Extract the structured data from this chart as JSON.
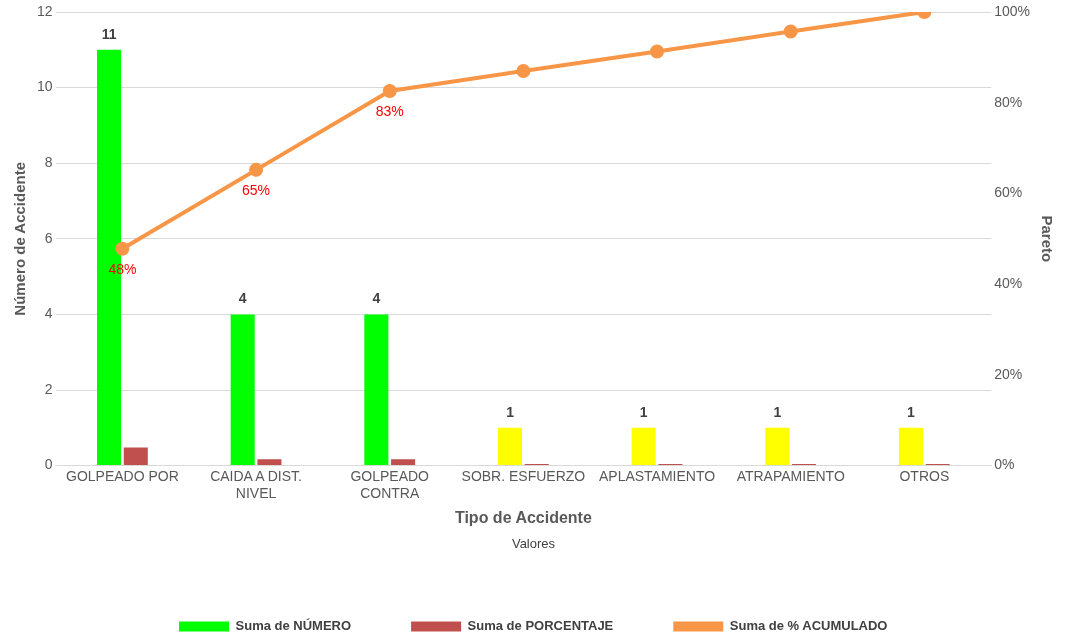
{
  "chart_data": {
    "type": "bar",
    "categories": [
      "GOLPEADO POR",
      "CAIDA A DIST. NIVEL",
      "GOLPEADO CONTRA",
      "SOBR. ESFUERZO",
      "APLASTAMIENTO",
      "ATRAPAMIENTO",
      "OTROS"
    ],
    "series": [
      {
        "name": "Suma de NÚMERO",
        "color": "#00ff00",
        "colors": [
          "#00ff00",
          "#00ff00",
          "#00ff00",
          "#ffff00",
          "#ffff00",
          "#ffff00",
          "#ffff00"
        ],
        "values": [
          11,
          4,
          4,
          1,
          1,
          1,
          1
        ],
        "value_labels": [
          "11",
          "4",
          "4",
          "1",
          "1",
          "1",
          "1"
        ]
      },
      {
        "name": "Suma de PORCENTAJE",
        "color": "#c0504d",
        "values": [
          0.48,
          0.17,
          0.17,
          0.04,
          0.04,
          0.04,
          0.04
        ]
      },
      {
        "name": "Suma de % ACUMULADO",
        "type": "line",
        "axis": "y2",
        "color": "#f79646",
        "values": [
          47.8,
          65.2,
          82.6,
          87.0,
          91.3,
          95.7,
          100
        ],
        "value_labels": [
          "48%",
          "65%",
          "83%",
          null,
          null,
          null,
          null
        ]
      }
    ],
    "xlabel": "Tipo de Accidente",
    "ylabel": "Número de Accidente",
    "y2label": "Pareto",
    "legend_title": "Valores",
    "ylim": [
      0,
      12
    ],
    "yticks": [
      0,
      2,
      4,
      6,
      8,
      10,
      12
    ],
    "y2lim": [
      0,
      100
    ],
    "y2ticks": [
      {
        "value": 0,
        "label": "0%"
      },
      {
        "value": 20,
        "label": "20%"
      },
      {
        "value": 40,
        "label": "40%"
      },
      {
        "value": 60,
        "label": "60%"
      },
      {
        "value": 80,
        "label": "80%"
      },
      {
        "value": 100,
        "label": "100%"
      }
    ],
    "grid": "y",
    "legend": "bottom",
    "marker": "circle",
    "line_style": "solid"
  }
}
